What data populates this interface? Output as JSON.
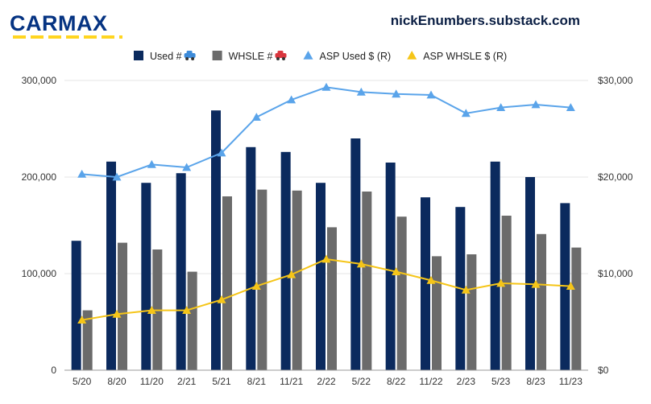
{
  "header": {
    "logo_text": "CARMAX",
    "site": "nickEnumbers.substack.com"
  },
  "colors": {
    "used": "#0b2a5e",
    "whsle": "#6b6b6b",
    "asp_used": "#5aa4ea",
    "asp_whsle": "#f5c518",
    "grid": "#e6e6e6"
  },
  "chart_data": {
    "type": "bar",
    "categories": [
      "5/20",
      "8/20",
      "11/20",
      "2/21",
      "5/21",
      "8/21",
      "11/21",
      "2/22",
      "5/22",
      "8/22",
      "11/22",
      "2/23",
      "5/23",
      "8/23",
      "11/23"
    ],
    "series": [
      {
        "name": "Used #",
        "kind": "bar",
        "axis": "left",
        "icon": "car-icon-blue",
        "values": [
          134000,
          216000,
          194000,
          204000,
          269000,
          231000,
          226000,
          194000,
          240000,
          215000,
          179000,
          169000,
          216000,
          200000,
          173000
        ]
      },
      {
        "name": "WHSLE #",
        "kind": "bar",
        "axis": "left",
        "icon": "car-icon-red",
        "values": [
          62000,
          132000,
          125000,
          102000,
          180000,
          187000,
          186000,
          148000,
          185000,
          159000,
          118000,
          120000,
          160000,
          141000,
          127000
        ]
      },
      {
        "name": "ASP Used $ (R)",
        "kind": "line",
        "axis": "right",
        "marker": "triangle",
        "values": [
          20300,
          20000,
          21300,
          21000,
          22500,
          26200,
          28000,
          29300,
          28800,
          28600,
          28500,
          26600,
          27200,
          27500,
          27200
        ]
      },
      {
        "name": "ASP WHSLE $ (R)",
        "kind": "line",
        "axis": "right",
        "marker": "triangle",
        "values": [
          5200,
          5800,
          6200,
          6200,
          7300,
          8700,
          9900,
          11500,
          11000,
          10200,
          9300,
          8300,
          9000,
          8900,
          8700
        ]
      }
    ],
    "y_left": {
      "ylim": [
        0,
        300000
      ],
      "ticks": [
        0,
        100000,
        200000,
        300000
      ],
      "tick_labels": [
        "0",
        "100,000",
        "200,000",
        "300,000"
      ]
    },
    "y_right": {
      "ylim": [
        0,
        30000
      ],
      "ticks": [
        0,
        10000,
        20000,
        30000
      ],
      "tick_labels": [
        "$0",
        "$10,000",
        "$20,000",
        "$30,000"
      ]
    },
    "grid": true,
    "legend": "top-center"
  }
}
